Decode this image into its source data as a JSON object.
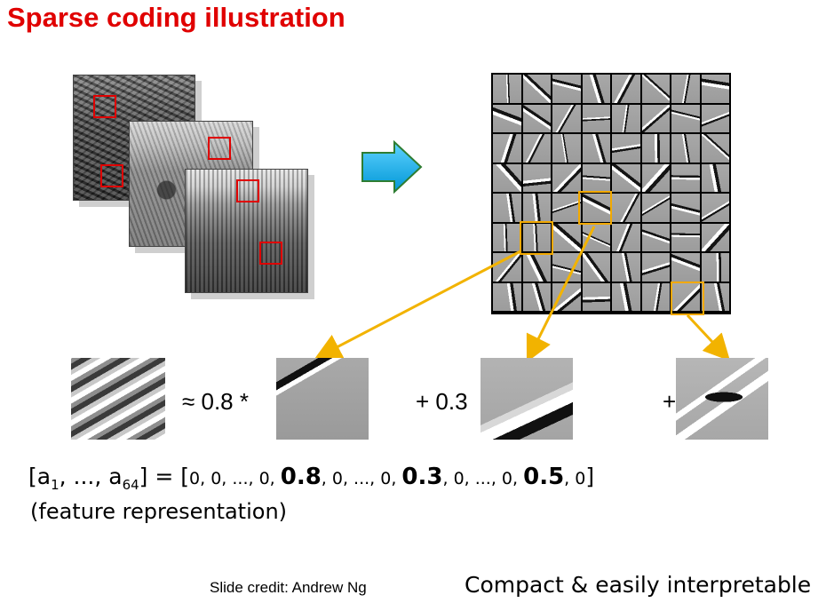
{
  "title": "Sparse coding illustration",
  "equation": {
    "approx_term": "≈ 0.8 *",
    "plus_term_1": "+ 0.3",
    "plus_term_2": "+"
  },
  "feature_vector": {
    "open": "[a",
    "sub_first": "1",
    "ellipsis": ", ..., a",
    "sub_last": "64",
    "equals": "] = [",
    "part1": "0, 0, ..., 0, ",
    "coef1": "0.8",
    "part2": ", 0, ..., 0, ",
    "coef2": "0.3",
    "part3": ", 0, ..., 0, ",
    "coef3": "0.5",
    "part4": ", 0",
    "close": "]"
  },
  "feature_label": "(feature representation)",
  "credit": "Slide credit: Andrew Ng",
  "summary": "Compact & easily interpretable",
  "colors": {
    "title": "#e00000",
    "highlight_box": "#f2a900",
    "patch_box": "#e00000",
    "arrow_fill": "#00b4f0",
    "connector": "#f2b300"
  },
  "icons": [
    "right-arrow-icon"
  ]
}
